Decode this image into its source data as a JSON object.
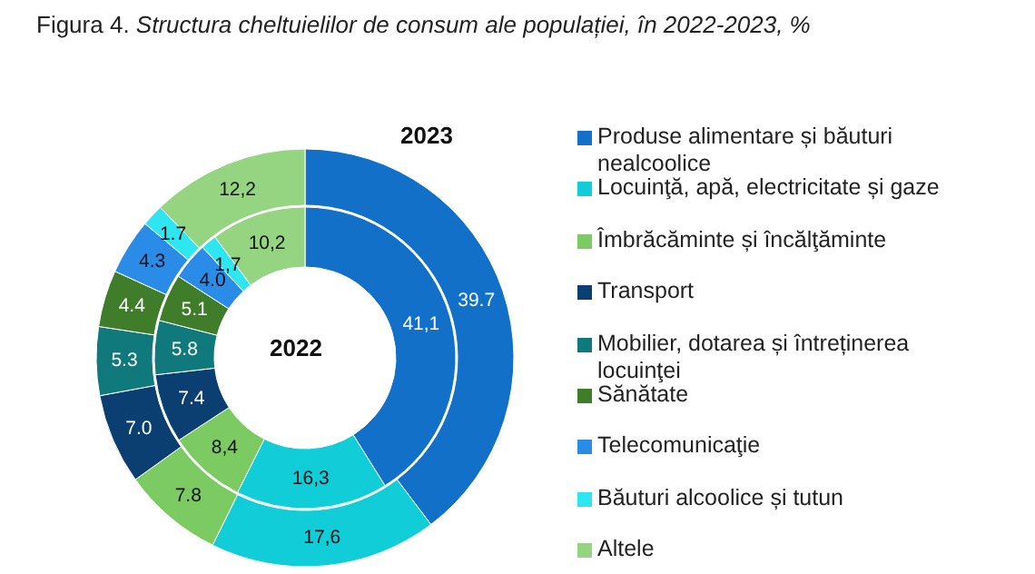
{
  "chart_data": {
    "type": "donut",
    "title": "Figura 4. Structura cheltuielilor de consum ale populației, în 2022-2023, %",
    "categories": [
      "Produse alimentare și băuturi nealcoolice",
      "Locuinţă, apă, electricitate și gaze",
      "Îmbrăcăminte și încălţăminte",
      "Transport",
      "Mobilier, dotarea și întreținerea locuinţei",
      "Sănătate",
      "Telecomunicaţie",
      "Băuturi alcoolice și tutun",
      "Altele"
    ],
    "colors": [
      "#1270c8",
      "#10cdd8",
      "#7ccb62",
      "#0b3f72",
      "#0f797c",
      "#3f7d2a",
      "#2b8ce8",
      "#2ee6f0",
      "#95d480"
    ],
    "series": [
      {
        "name": "2022",
        "values": [
          41.1,
          16.3,
          8.4,
          7.4,
          5.8,
          5.1,
          4.0,
          1.7,
          10.2
        ],
        "value_labels": [
          "41,1",
          "16,3",
          "8,4",
          "7.4",
          "5.8",
          "5.1",
          "4.0",
          "1,7",
          "10,2"
        ]
      },
      {
        "name": "2023",
        "values": [
          39.7,
          17.6,
          7.8,
          7.0,
          5.3,
          4.4,
          4.3,
          1.7,
          12.2
        ],
        "value_labels": [
          "39.7",
          "17,6",
          "7.8",
          "7.0",
          "5.3",
          "4.4",
          "4.3",
          "1.7",
          "12,2"
        ]
      }
    ],
    "legend": "right"
  }
}
